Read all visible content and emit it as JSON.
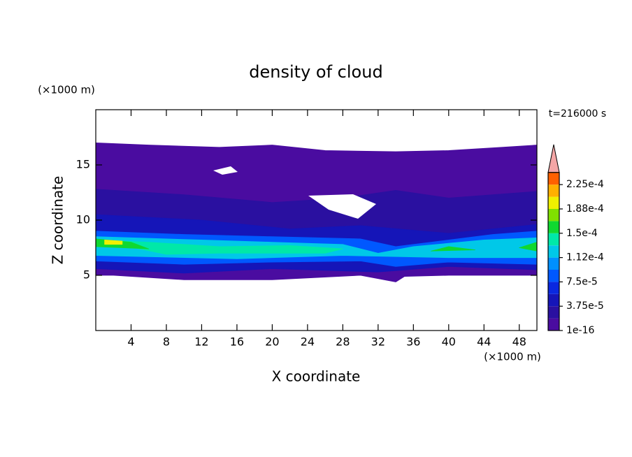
{
  "chart_data": {
    "type": "contour",
    "title": "density of cloud",
    "x_label": "X coordinate",
    "y_label": "Z coordinate",
    "x_unit": "(×1000 m)",
    "y_unit": "(×1000 m)",
    "time_label": "t=216000 s",
    "xlim": [
      0,
      50
    ],
    "ylim": [
      0,
      20
    ],
    "xticks": [
      4,
      8,
      12,
      16,
      20,
      24,
      28,
      32,
      36,
      40,
      44,
      48
    ],
    "yticks": [
      5,
      10,
      15
    ],
    "colorbar": {
      "levels": [
        1e-16,
        1.875e-05,
        3.75e-05,
        5.625e-05,
        7.5e-05,
        9.375e-05,
        0.0001125,
        0.00013125,
        0.00015,
        0.00016875,
        0.0001875,
        0.00020625,
        0.000225,
        0.00024375
      ],
      "colors": [
        "#4a0ca0",
        "#2a10a0",
        "#1515b8",
        "#0a28e0",
        "#0058ff",
        "#0090ff",
        "#00c8e8",
        "#00e8a8",
        "#10d830",
        "#80e000",
        "#f0f000",
        "#ffb000",
        "#ff6000"
      ],
      "extend_color": "#f4a6a6",
      "ticks": [
        {
          "value": 1e-16,
          "label": "1e-16"
        },
        {
          "value": 3.75e-05,
          "label": "3.75e-5"
        },
        {
          "value": 7.5e-05,
          "label": "7.5e-5"
        },
        {
          "value": 0.0001125,
          "label": "1.12e-4"
        },
        {
          "value": 0.00015,
          "label": "1.5e-4"
        },
        {
          "value": 0.0001875,
          "label": "1.88e-4"
        },
        {
          "value": 0.000225,
          "label": "2.25e-4"
        }
      ]
    },
    "regions": [
      {
        "level": 1e-16,
        "x": [
          0,
          0,
          6,
          14,
          20,
          26,
          34,
          40,
          46,
          50,
          50,
          40,
          35,
          34,
          30,
          20,
          10,
          2
        ],
        "z": [
          5,
          17,
          16.8,
          16.6,
          16.8,
          16.3,
          16.2,
          16.3,
          16.6,
          16.8,
          5,
          5,
          4.9,
          4.4,
          5,
          4.6,
          4.6,
          5
        ]
      },
      {
        "level": 1.875e-05,
        "x": [
          0,
          0,
          10,
          20,
          28,
          34,
          40,
          50,
          50,
          40,
          30,
          20,
          10
        ],
        "z": [
          6,
          12.8,
          12.3,
          11.6,
          12,
          12.7,
          12,
          12.6,
          6,
          6,
          6,
          6,
          6
        ]
      },
      {
        "level": 3.75e-05,
        "x": [
          0,
          0,
          12,
          22,
          30,
          40,
          50,
          50,
          40,
          32,
          20,
          10
        ],
        "z": [
          5.6,
          10.5,
          10,
          9.2,
          9.5,
          8.8,
          9.6,
          5.5,
          5.8,
          5.3,
          5.6,
          5.2
        ]
      },
      {
        "level": 7.5e-05,
        "x": [
          0,
          0,
          10,
          20,
          30,
          34,
          38,
          45,
          50,
          50,
          40,
          34,
          30,
          20,
          10
        ],
        "z": [
          6.3,
          9,
          8.7,
          8.5,
          8.3,
          7.6,
          8,
          8.7,
          9,
          6,
          6.2,
          5.8,
          6.3,
          6.2,
          6
        ]
      },
      {
        "level": 0.0001125,
        "x": [
          0,
          0,
          12,
          20,
          28,
          32,
          36,
          44,
          50,
          50,
          40,
          28,
          16
        ],
        "z": [
          6.8,
          8.5,
          8.2,
          8,
          7.8,
          7,
          7.6,
          8.2,
          8.4,
          6.6,
          6.6,
          6.8,
          6.5
        ]
      },
      {
        "level": 0.00013125,
        "x": [
          8,
          0,
          6,
          14,
          22,
          28,
          26,
          14
        ],
        "z": [
          6.9,
          8.2,
          8,
          7.6,
          7.7,
          7.4,
          7,
          7
        ]
      },
      {
        "level": 0.00015,
        "x": [
          0,
          0,
          4,
          6
        ],
        "z": [
          7.6,
          8.3,
          8,
          7.4
        ]
      },
      {
        "level": 0.00015,
        "x": [
          38,
          40,
          43
        ],
        "z": [
          7.2,
          7.6,
          7.3
        ]
      },
      {
        "level": 0.00015,
        "x": [
          48,
          50,
          50
        ],
        "z": [
          7.5,
          8,
          7.2
        ]
      },
      {
        "level": 0.0001875,
        "x": [
          1,
          1,
          3,
          3
        ],
        "z": [
          7.8,
          8.2,
          8.1,
          7.8
        ]
      }
    ]
  }
}
